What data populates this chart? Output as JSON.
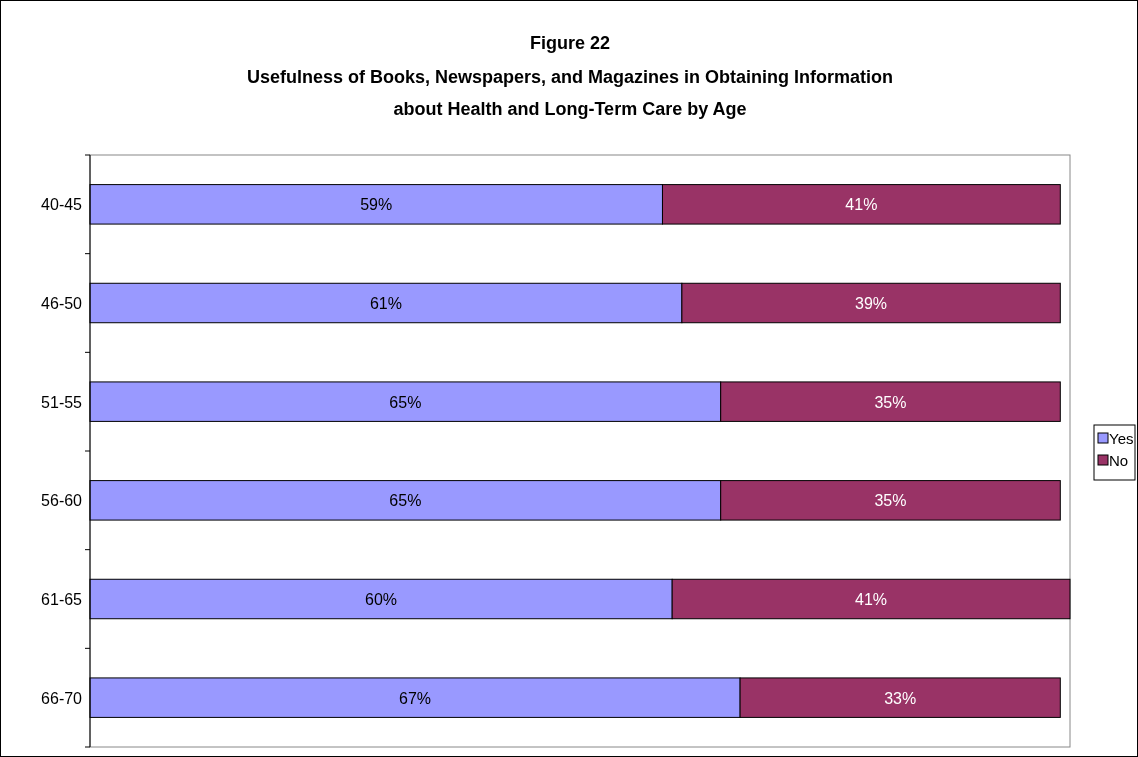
{
  "chart_data": {
    "type": "bar",
    "orientation": "horizontal",
    "stacked": true,
    "title": "Figure 22",
    "subtitle": "Usefulness of Books, Newspapers, and Magazines in Obtaining Information about Health and Long-Term Care by Age",
    "categories": [
      "40-45",
      "46-50",
      "51-55",
      "56-60",
      "61-65",
      "66-70"
    ],
    "series": [
      {
        "name": "Yes",
        "color": "#9999ff",
        "values": [
          59,
          61,
          65,
          65,
          60,
          67
        ],
        "value_labels": [
          "59%",
          "61%",
          "65%",
          "65%",
          "60%",
          "67%"
        ]
      },
      {
        "name": "No",
        "color": "#993366",
        "values": [
          41,
          39,
          35,
          35,
          41,
          33
        ],
        "value_labels": [
          "41%",
          "39%",
          "35%",
          "35%",
          "41%",
          "33%"
        ]
      }
    ],
    "xlim": [
      0,
      101
    ],
    "tick_labels": "y",
    "legend": "right"
  }
}
